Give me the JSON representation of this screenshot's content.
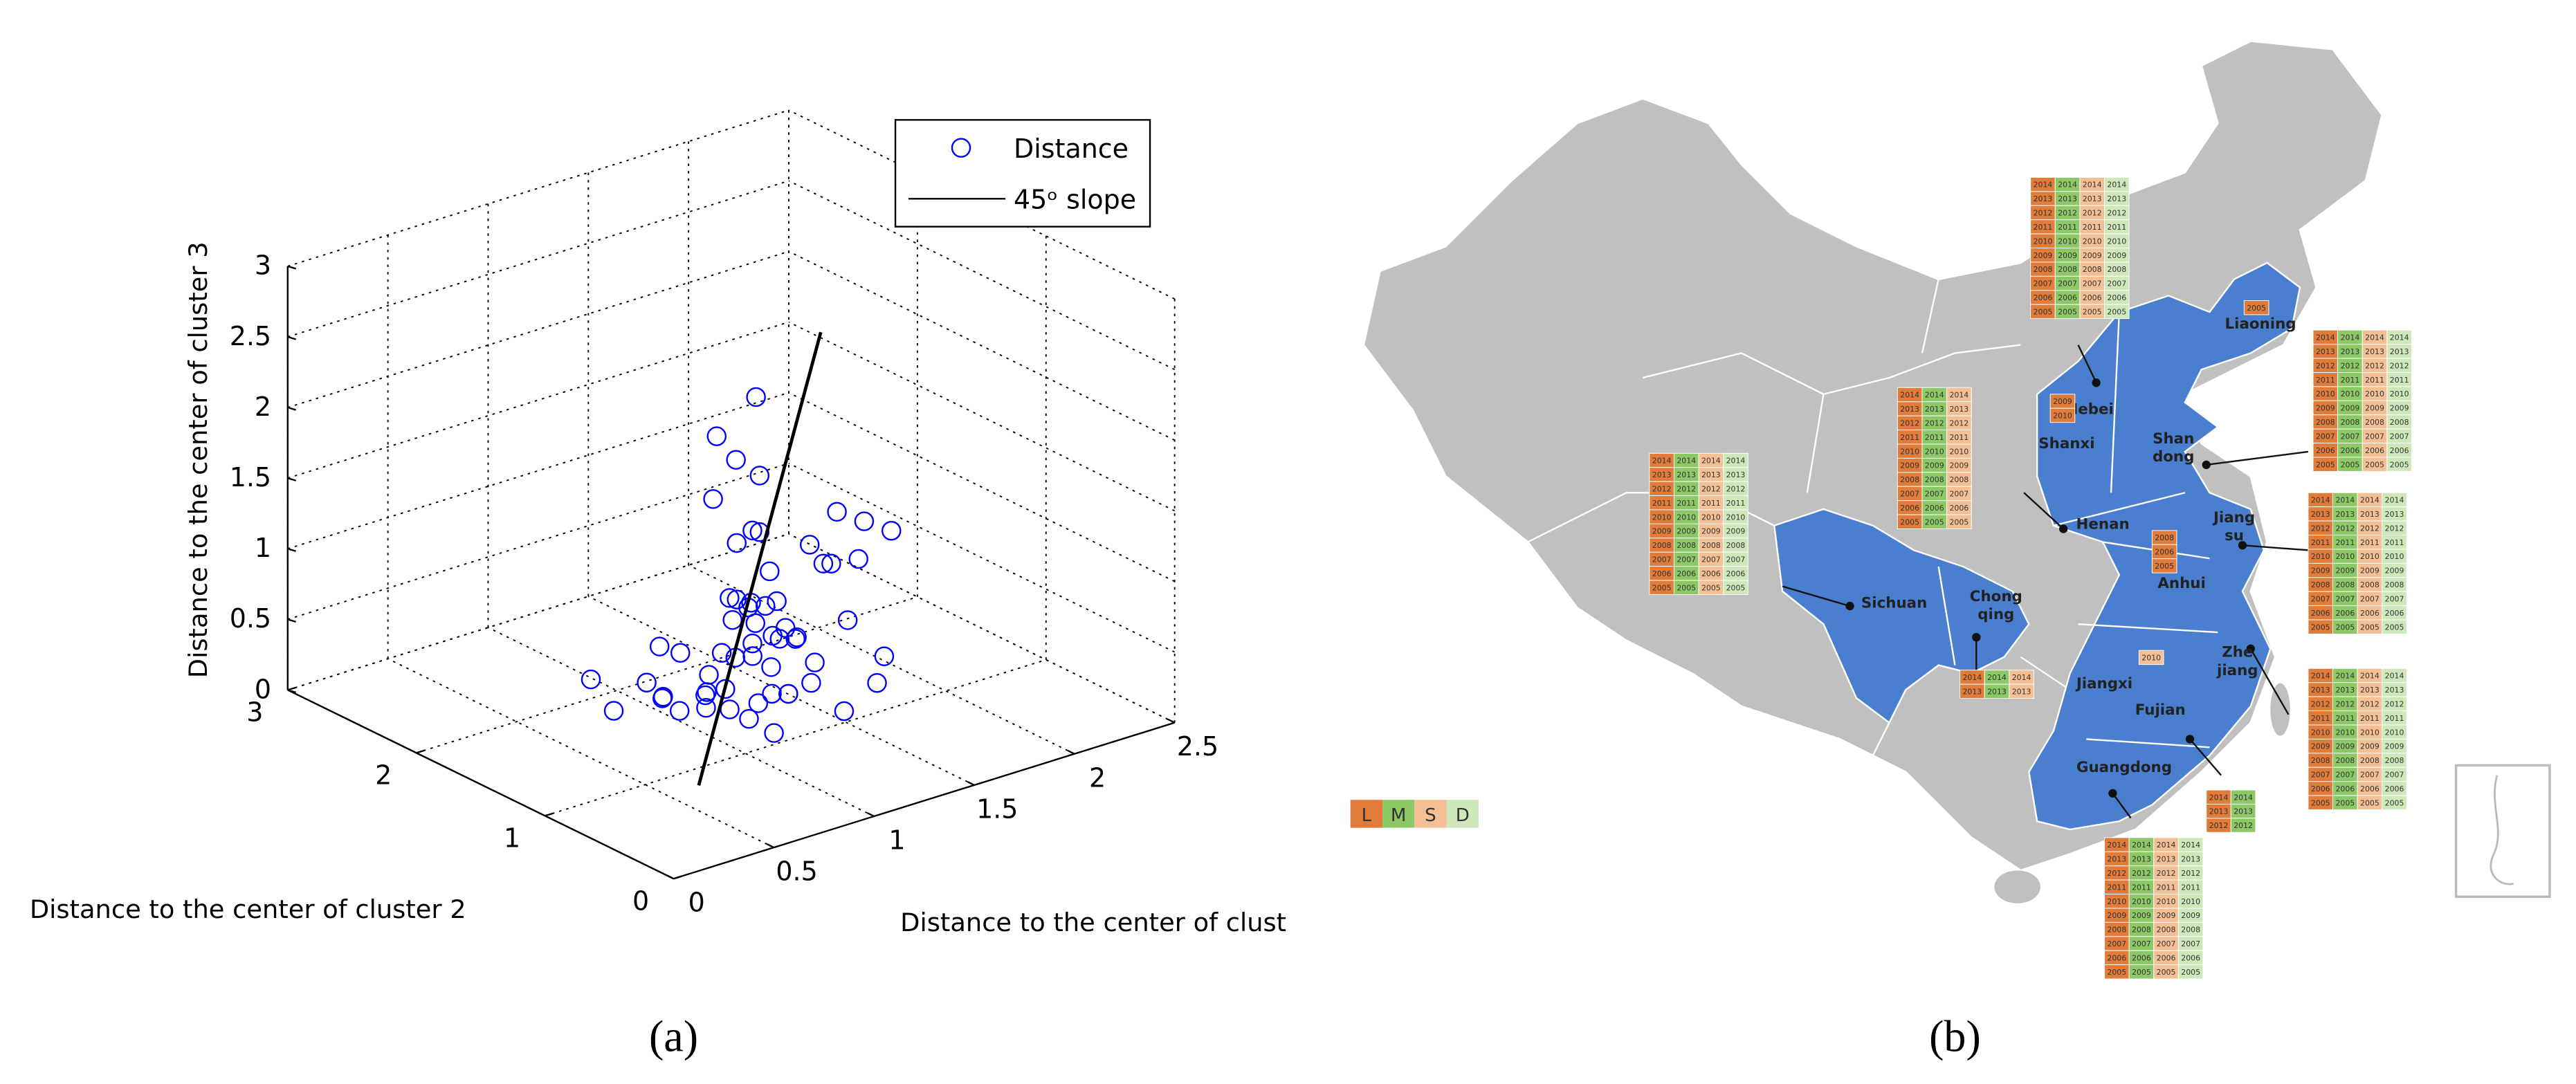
{
  "chart_data": {
    "type": "scatter3d",
    "xlabel": "Distance to the center of clust",
    "ylabel": "Distance to the center of cluster 2",
    "zlabel": "Distance to the center of cluster 3",
    "xlim": [
      0,
      2.5
    ],
    "xticks": [
      0,
      0.5,
      1,
      1.5,
      2,
      2.5
    ],
    "ylim": [
      0,
      3
    ],
    "yticks": [
      0,
      1,
      2,
      3
    ],
    "zlim": [
      0,
      3
    ],
    "zticks": [
      0,
      0.5,
      1,
      1.5,
      2,
      2.5,
      3
    ],
    "grid": true,
    "legend_loc": "upper right",
    "series": [
      {
        "name": "Distance",
        "color": "#0000ff",
        "marker": "circle",
        "x": [
          0.9,
          1.0,
          1.1,
          0.8,
          1.2,
          0.95,
          1.05,
          0.85,
          1.15,
          1.3,
          0.7,
          1.0,
          1.25,
          0.9,
          1.1,
          0.75,
          1.4,
          1.0,
          0.6,
          1.2,
          0.95,
          1.05,
          0.85,
          1.35,
          0.65,
          1.1,
          0.9,
          1.0,
          1.2,
          0.8,
          1.5,
          0.7,
          1.0,
          1.15,
          0.9,
          1.3,
          0.55,
          1.05,
          0.95,
          1.25,
          0.6,
          0.7,
          0.65,
          0.75,
          0.6,
          0.7,
          0.8,
          0.55,
          0.65,
          0.7,
          0.75,
          0.6,
          0.9,
          1.0,
          1.1,
          1.2,
          0.85,
          1.4,
          1.6,
          1.5
        ],
        "y": [
          1.0,
          0.9,
          1.1,
          1.2,
          0.8,
          1.0,
          1.05,
          0.95,
          0.9,
          0.7,
          1.3,
          1.1,
          0.85,
          1.15,
          1.0,
          1.25,
          0.6,
          0.8,
          1.4,
          1.0,
          0.9,
          1.2,
          1.05,
          0.75,
          1.1,
          0.95,
          0.8,
          1.3,
          1.1,
          1.0,
          0.7,
          1.2,
          0.6,
          0.9,
          1.35,
          0.8,
          1.5,
          1.0,
          0.7,
          1.0,
          0.5,
          0.6,
          0.4,
          0.5,
          0.6,
          0.45,
          0.5,
          0.55,
          0.4,
          0.6,
          0.5,
          0.45,
          0.6,
          0.5,
          0.55,
          0.6,
          0.5,
          0.7,
          0.8,
          0.9
        ],
        "z": [
          0.5,
          0.4,
          0.6,
          0.3,
          0.5,
          0.7,
          0.2,
          0.8,
          0.4,
          0.3,
          0.5,
          0.9,
          0.6,
          0.3,
          1.0,
          0.4,
          0.5,
          0.7,
          0.3,
          0.8,
          1.1,
          0.2,
          0.6,
          0.9,
          0.5,
          0.4,
          1.2,
          0.3,
          0.7,
          0.5,
          0.6,
          0.8,
          1.0,
          0.4,
          0.6,
          1.3,
          0.5,
          0.9,
          0.3,
          0.7,
          1.5,
          1.8,
          2.0,
          2.3,
          2.6,
          2.9,
          1.6,
          2.2,
          1.2,
          1.4,
          1.9,
          2.5,
          1.3,
          1.7,
          1.5,
          1.8,
          1.1,
          1.6,
          1.4,
          1.2
        ]
      },
      {
        "name": "45ᵒ slope",
        "color": "#000000",
        "marker": "line",
        "x": [
          0.35,
          2.05
        ],
        "y": [
          0.35,
          2.05
        ],
        "z": [
          0.35,
          2.05
        ]
      }
    ]
  },
  "panel_labels": [
    "(a)",
    "(b)"
  ],
  "map": {
    "legend": [
      {
        "label": "L",
        "color": "#e07b39"
      },
      {
        "label": "M",
        "color": "#8cc866"
      },
      {
        "label": "S",
        "color": "#f4bf95"
      },
      {
        "label": "D",
        "color": "#cfe8bb"
      }
    ],
    "provinces": [
      "Liaoning",
      "Hebei",
      "Shanxi",
      "Shan dong",
      "Henan",
      "Jiang su",
      "Anhui",
      "Sichuan",
      "Chong qing",
      "Jiangxi",
      "Zhe jiang",
      "Fujian",
      "Guangdong"
    ],
    "tables": [
      {
        "classes": [
          0,
          1,
          2,
          3
        ],
        "years": [
          2014,
          2013,
          2012,
          2011,
          2010,
          2009,
          2008,
          2007,
          2006,
          2005
        ]
      },
      {
        "classes": [
          0
        ],
        "years": [
          2005
        ]
      },
      {
        "classes": [
          0,
          1,
          2,
          3
        ],
        "years": [
          2014,
          2013,
          2012,
          2011,
          2010,
          2009,
          2008,
          2007,
          2006,
          2005
        ]
      },
      {
        "classes": [
          0,
          1,
          2
        ],
        "years": [
          2014,
          2013,
          2012,
          2011,
          2010,
          2009,
          2008,
          2007,
          2006,
          2005
        ]
      },
      {
        "classes": [
          0
        ],
        "years": [
          2009,
          2010
        ]
      },
      {
        "classes": [
          0,
          1,
          2,
          3
        ],
        "years": [
          2014,
          2013,
          2012,
          2011,
          2010,
          2009,
          2008,
          2007,
          2006,
          2005
        ]
      },
      {
        "classes": [
          0,
          1,
          2,
          3
        ],
        "years": [
          2014,
          2013,
          2012,
          2011,
          2010,
          2009,
          2008,
          2007,
          2006,
          2005
        ]
      },
      {
        "classes": [
          0
        ],
        "years": [
          2008,
          2006,
          2005
        ]
      },
      {
        "classes": [
          0,
          1,
          2
        ],
        "years": [
          2014,
          2013
        ]
      },
      {
        "classes": [
          2
        ],
        "years": [
          2010
        ]
      },
      {
        "classes": [
          0,
          1,
          2,
          3
        ],
        "years": [
          2014,
          2013,
          2012,
          2011,
          2010,
          2009,
          2008,
          2007,
          2006,
          2005
        ]
      },
      {
        "classes": [
          0,
          1
        ],
        "years": [
          2014,
          2013,
          2012
        ]
      },
      {
        "classes": [
          0,
          1,
          2,
          3
        ],
        "years": [
          2014,
          2013,
          2012,
          2011,
          2010,
          2009,
          2008,
          2007,
          2006,
          2005
        ]
      }
    ]
  }
}
